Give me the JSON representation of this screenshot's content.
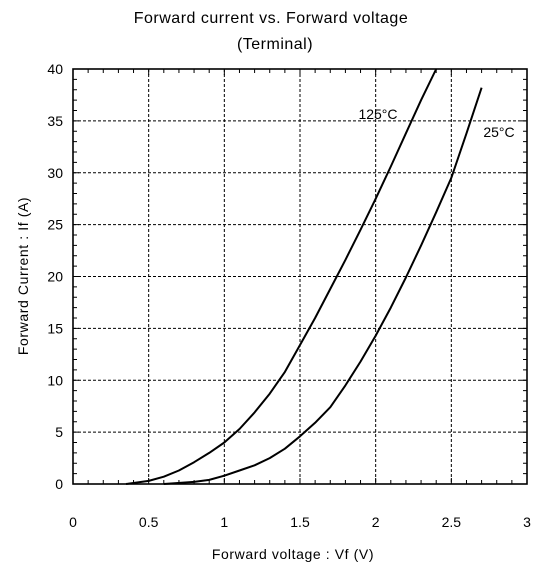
{
  "chart_data": {
    "type": "line",
    "title": "Forward current vs. Forward voltage",
    "subtitle": "(Terminal)",
    "xlabel": "Forward voltage : Vf (V)",
    "ylabel": "Forward Current : If (A)",
    "xlim": [
      0,
      3
    ],
    "ylim": [
      0,
      40
    ],
    "x_ticks": [
      0,
      0.5,
      1,
      1.5,
      2,
      2.5,
      3
    ],
    "x_tick_labels": [
      "0",
      "0.5",
      "1",
      "1.5",
      "2",
      "2.5",
      "3"
    ],
    "y_ticks": [
      0,
      5,
      10,
      15,
      20,
      25,
      30,
      35,
      40
    ],
    "y_tick_labels": [
      "0",
      "5",
      "10",
      "15",
      "20",
      "25",
      "30",
      "35",
      "40"
    ],
    "grid": true,
    "series": [
      {
        "name": "125°C",
        "x": [
          0.35,
          0.5,
          0.6,
          0.7,
          0.8,
          0.9,
          1.0,
          1.1,
          1.2,
          1.3,
          1.4,
          1.5,
          1.6,
          1.7,
          1.8,
          1.9,
          2.0,
          2.1,
          2.2,
          2.3,
          2.4
        ],
        "y": [
          0.0,
          0.3,
          0.7,
          1.3,
          2.1,
          3.0,
          4.0,
          5.3,
          6.9,
          8.7,
          10.8,
          13.4,
          16.0,
          18.8,
          21.6,
          24.5,
          27.5,
          30.6,
          33.8,
          37.0,
          40.0
        ]
      },
      {
        "name": "25°C",
        "x": [
          0.6,
          0.8,
          0.9,
          1.0,
          1.1,
          1.2,
          1.3,
          1.4,
          1.5,
          1.6,
          1.7,
          1.8,
          1.9,
          2.0,
          2.1,
          2.2,
          2.3,
          2.4,
          2.5,
          2.6,
          2.7
        ],
        "y": [
          0.0,
          0.2,
          0.4,
          0.8,
          1.3,
          1.8,
          2.5,
          3.4,
          4.6,
          5.9,
          7.4,
          9.5,
          11.8,
          14.3,
          17.0,
          19.9,
          23.0,
          26.2,
          29.5,
          33.8,
          38.2
        ]
      }
    ],
    "annotations": [
      {
        "text": "125°C",
        "series": "125°C"
      },
      {
        "text": "25°C",
        "series": "25°C"
      }
    ]
  }
}
